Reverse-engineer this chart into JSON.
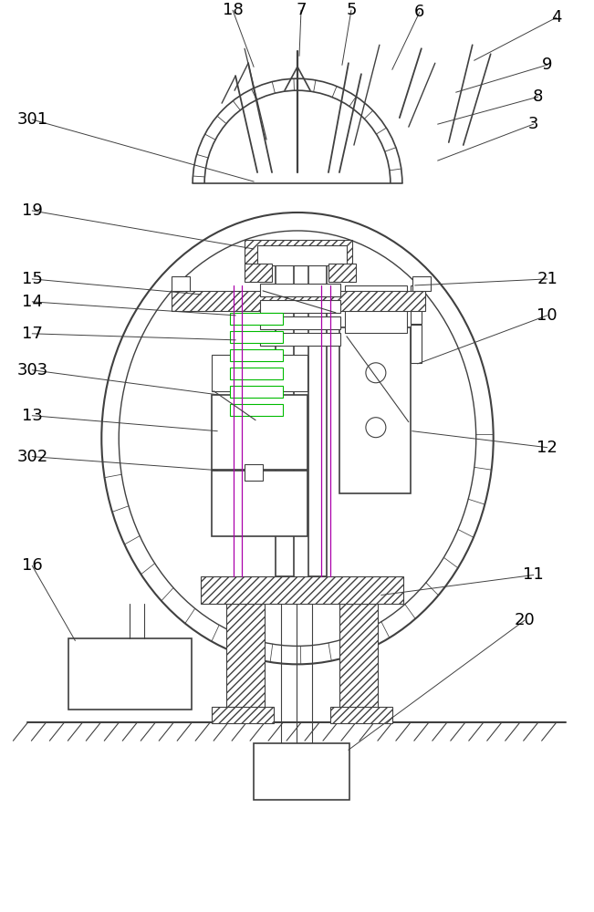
{
  "bg_color": "#ffffff",
  "line_color": "#404040",
  "green_color": "#00bb00",
  "purple_color": "#aa00aa",
  "figsize": [
    6.51,
    10.0
  ],
  "dpi": 100,
  "labels_data": {
    "4": [
      610,
      18,
      520,
      65
    ],
    "5": [
      385,
      10,
      375,
      70
    ],
    "6": [
      460,
      12,
      430,
      75
    ],
    "7": [
      330,
      10,
      328,
      60
    ],
    "18": [
      255,
      10,
      278,
      72
    ],
    "9": [
      600,
      70,
      500,
      100
    ],
    "8": [
      590,
      105,
      480,
      135
    ],
    "3": [
      585,
      135,
      480,
      175
    ],
    "301": [
      35,
      130,
      278,
      198
    ],
    "19": [
      35,
      230,
      278,
      272
    ],
    "15": [
      35,
      305,
      220,
      322
    ],
    "14": [
      35,
      330,
      258,
      345
    ],
    "17": [
      35,
      365,
      258,
      372
    ],
    "303": [
      35,
      405,
      238,
      432
    ],
    "13": [
      35,
      455,
      238,
      472
    ],
    "302": [
      35,
      500,
      238,
      515
    ],
    "21": [
      600,
      305,
      455,
      312
    ],
    "10": [
      600,
      345,
      458,
      398
    ],
    "12": [
      600,
      490,
      452,
      472
    ],
    "16": [
      35,
      620,
      82,
      702
    ],
    "11": [
      585,
      630,
      418,
      652
    ],
    "20": [
      575,
      680,
      382,
      822
    ]
  }
}
